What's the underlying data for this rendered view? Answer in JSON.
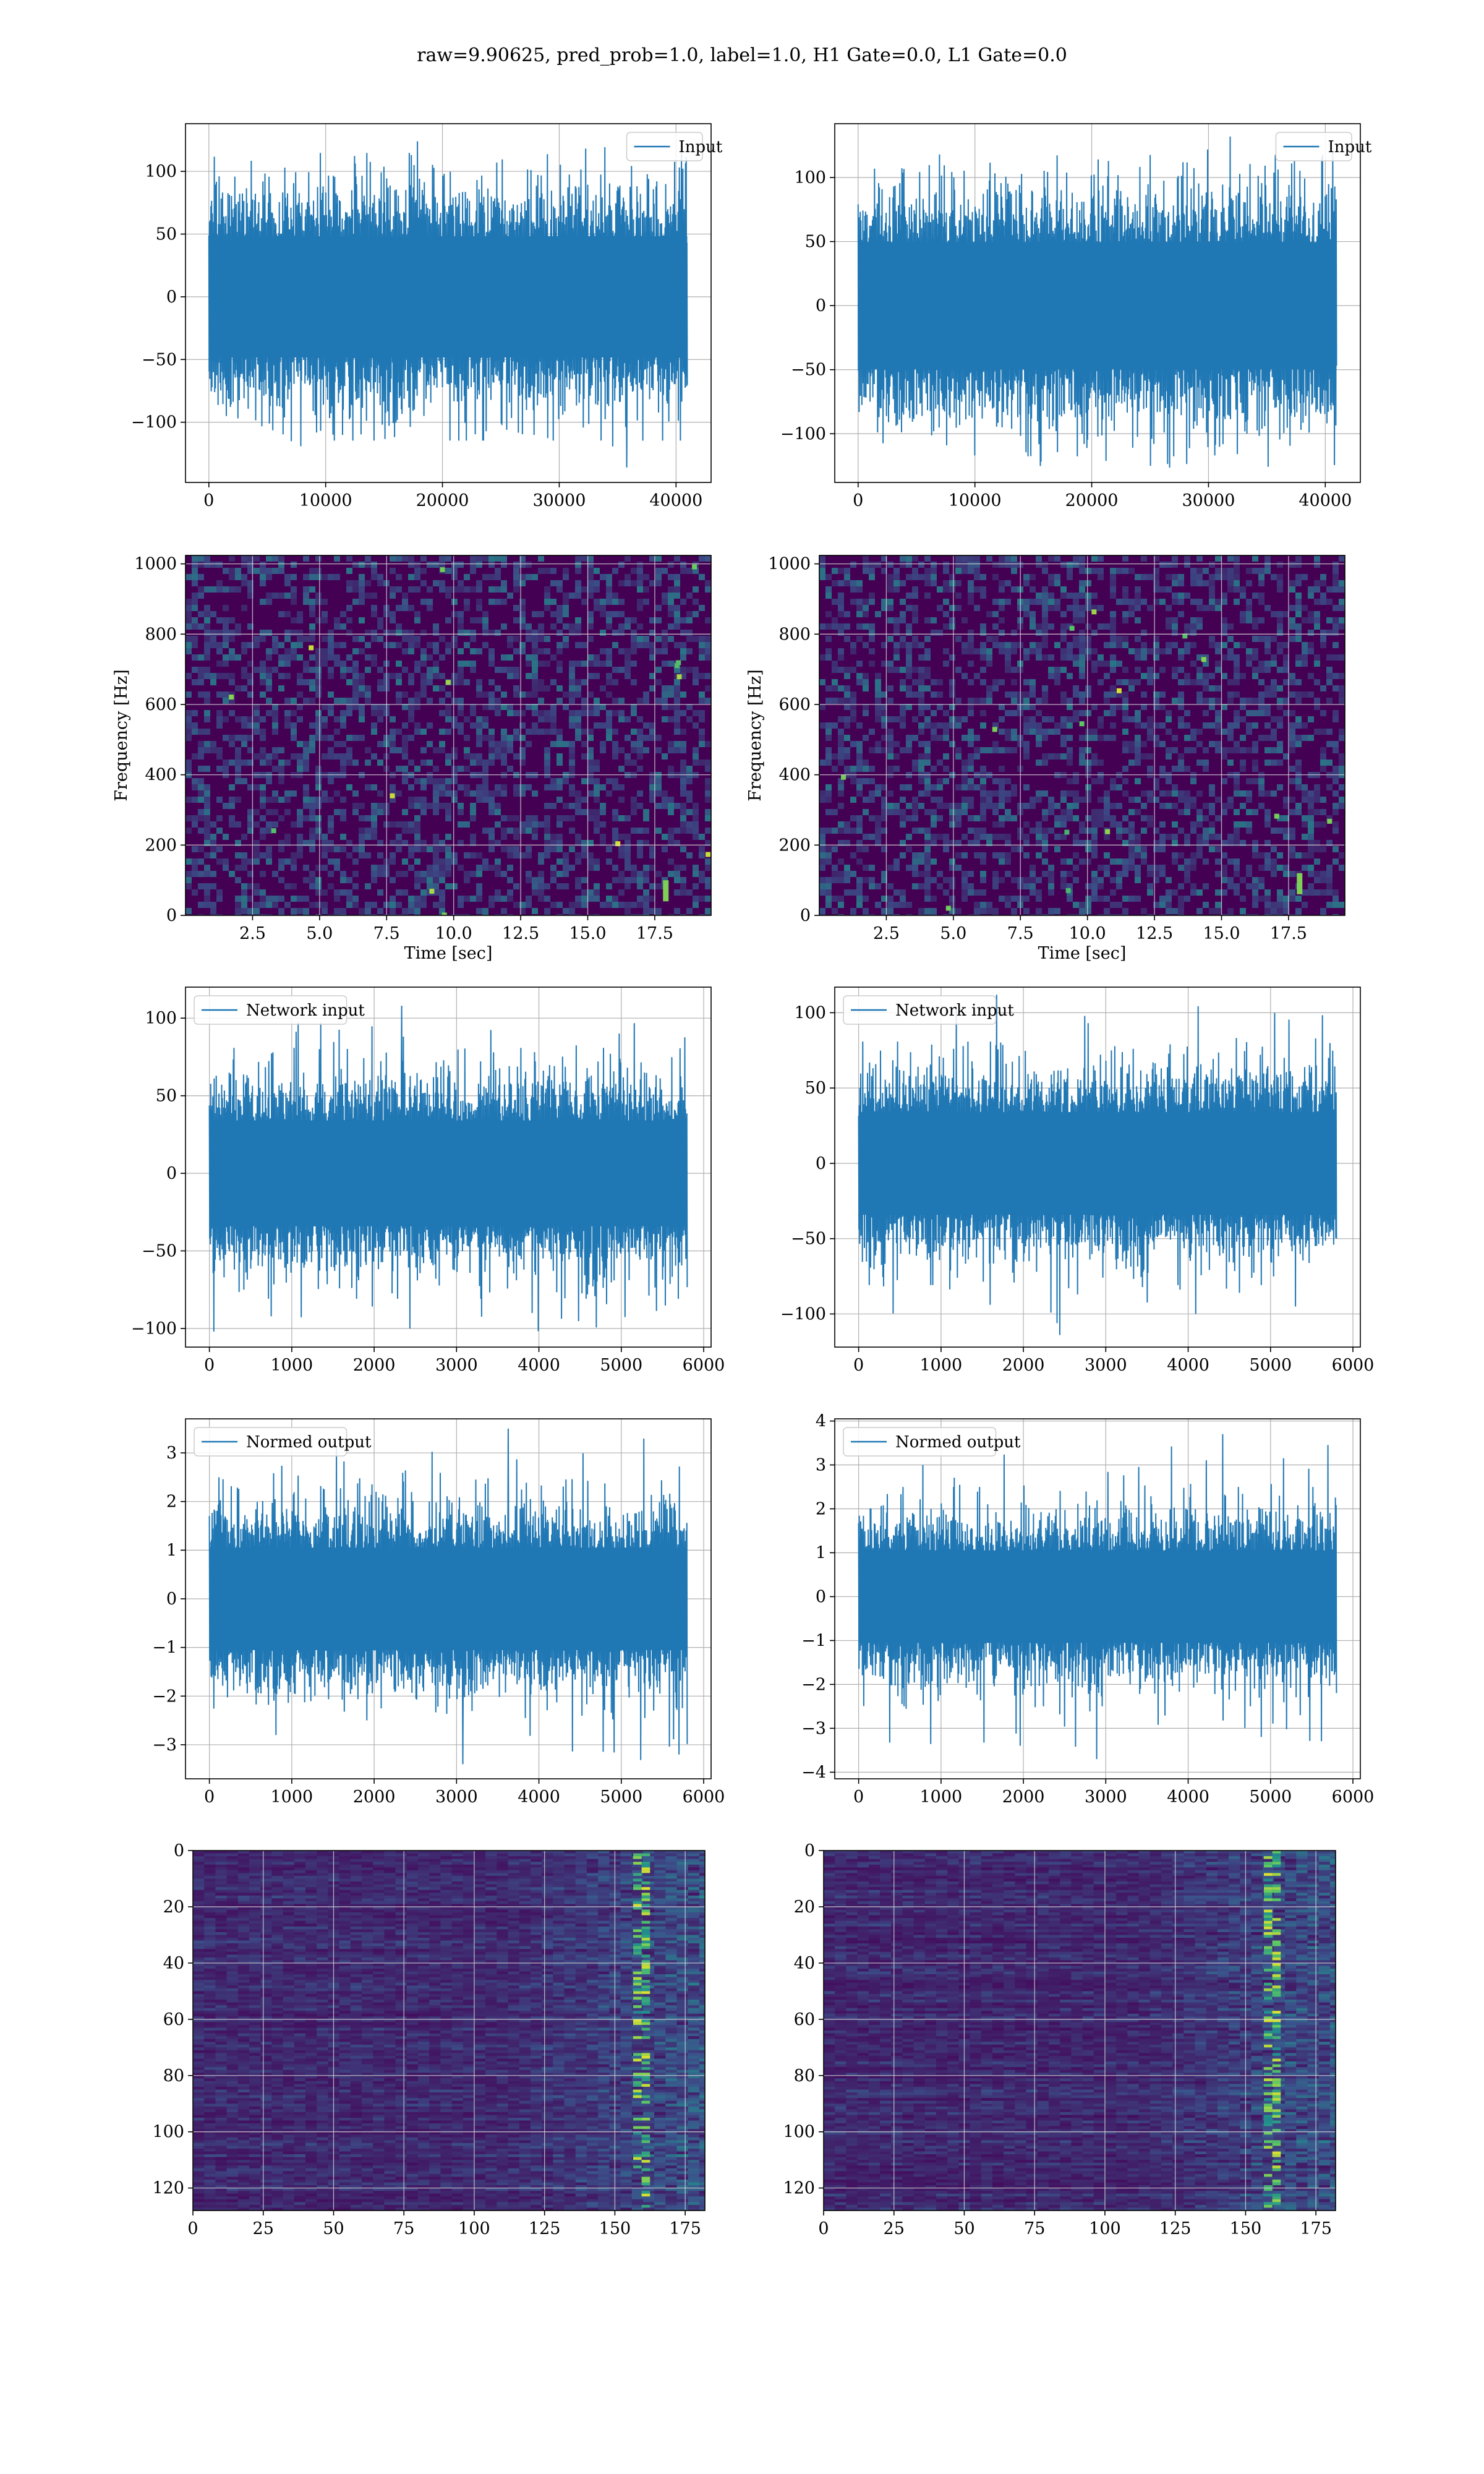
{
  "suptitle": "raw=9.90625, pred_prob=1.0, label=1.0, H1 Gate=0.0, L1 Gate=0.0",
  "colors": {
    "line": "#1f77b4",
    "viridis_low": "#440154",
    "viridis_mid": "#21918c",
    "viridis_high": "#fde725",
    "grid": "#b0b0b0"
  },
  "chart_data": [
    {
      "type": "line",
      "detector": "left",
      "legend": "Input",
      "xlim": [
        -2000,
        43000
      ],
      "ylim": [
        -148,
        138
      ],
      "xticks": [
        0,
        10000,
        20000,
        30000,
        40000
      ],
      "xtick_labels": [
        "0",
        "10000",
        "20000",
        "30000",
        "40000"
      ],
      "yticks": [
        -100,
        -50,
        0,
        50,
        100
      ],
      "ytick_labels": [
        "−100",
        "−50",
        "0",
        "50",
        "100"
      ],
      "xlabel": "",
      "ylabel": "",
      "grid": true,
      "legend_loc": "upper right",
      "series": [
        {
          "name": "Input",
          "n": 40960,
          "x": [
            0,
            40960
          ],
          "envelope": [
            -78,
            78
          ],
          "max": 124,
          "min": -136
        }
      ]
    },
    {
      "type": "line",
      "detector": "right",
      "legend": "Input",
      "xlim": [
        -2000,
        43000
      ],
      "ylim": [
        -138,
        142
      ],
      "xticks": [
        0,
        10000,
        20000,
        30000,
        40000
      ],
      "xtick_labels": [
        "0",
        "10000",
        "20000",
        "30000",
        "40000"
      ],
      "yticks": [
        -100,
        -50,
        0,
        50,
        100
      ],
      "ytick_labels": [
        "−100",
        "−50",
        "0",
        "50",
        "100"
      ],
      "xlabel": "",
      "ylabel": "",
      "grid": true,
      "legend_loc": "upper right",
      "series": [
        {
          "name": "Input",
          "n": 40960,
          "x": [
            0,
            40960
          ],
          "envelope": [
            -80,
            80
          ],
          "max": 132,
          "min": -125
        }
      ]
    },
    {
      "type": "heatmap",
      "detector": "left",
      "xlim": [
        0,
        19.6
      ],
      "ylim": [
        0,
        1024
      ],
      "xticks": [
        2.5,
        5.0,
        7.5,
        10.0,
        12.5,
        15.0,
        17.5
      ],
      "xtick_labels": [
        "2.5",
        "5.0",
        "7.5",
        "10.0",
        "12.5",
        "15.0",
        "17.5"
      ],
      "yticks": [
        0,
        200,
        400,
        600,
        800,
        1000
      ],
      "ytick_labels": [
        "0",
        "200",
        "400",
        "600",
        "800",
        "1000"
      ],
      "xlabel": "Time [sec]",
      "ylabel": "Frequency [Hz]",
      "grid": true,
      "cmap": "viridis",
      "hotspots": [
        {
          "t": 17.9,
          "f": 60
        }
      ]
    },
    {
      "type": "heatmap",
      "detector": "right",
      "xlim": [
        0,
        19.6
      ],
      "ylim": [
        0,
        1024
      ],
      "xticks": [
        2.5,
        5.0,
        7.5,
        10.0,
        12.5,
        15.0,
        17.5
      ],
      "xtick_labels": [
        "2.5",
        "5.0",
        "7.5",
        "10.0",
        "12.5",
        "15.0",
        "17.5"
      ],
      "yticks": [
        0,
        200,
        400,
        600,
        800,
        1000
      ],
      "ytick_labels": [
        "0",
        "200",
        "400",
        "600",
        "800",
        "1000"
      ],
      "xlabel": "Time [sec]",
      "ylabel": "Frequency [Hz]",
      "grid": true,
      "cmap": "viridis",
      "hotspots": [
        {
          "t": 17.9,
          "f": 80
        }
      ]
    },
    {
      "type": "line",
      "detector": "left",
      "legend": "Network input",
      "xlim": [
        -290,
        6090
      ],
      "ylim": [
        -112,
        120
      ],
      "xticks": [
        0,
        1000,
        2000,
        3000,
        4000,
        5000,
        6000
      ],
      "xtick_labels": [
        "0",
        "1000",
        "2000",
        "3000",
        "4000",
        "5000",
        "6000"
      ],
      "yticks": [
        -100,
        -50,
        0,
        50,
        100
      ],
      "ytick_labels": [
        "−100",
        "−50",
        "0",
        "50",
        "100"
      ],
      "xlabel": "",
      "ylabel": "",
      "grid": true,
      "legend_loc": "upper left",
      "series": [
        {
          "name": "Network input",
          "n": 5800,
          "x": [
            0,
            5800
          ],
          "envelope": [
            -55,
            55
          ],
          "max": 108,
          "min": -102
        }
      ]
    },
    {
      "type": "line",
      "detector": "right",
      "legend": "Network input",
      "xlim": [
        -290,
        6090
      ],
      "ylim": [
        -122,
        117
      ],
      "xticks": [
        0,
        1000,
        2000,
        3000,
        4000,
        5000,
        6000
      ],
      "xtick_labels": [
        "0",
        "1000",
        "2000",
        "3000",
        "4000",
        "5000",
        "6000"
      ],
      "yticks": [
        -100,
        -50,
        0,
        50,
        100
      ],
      "ytick_labels": [
        "−100",
        "−50",
        "0",
        "50",
        "100"
      ],
      "xlabel": "",
      "ylabel": "",
      "grid": true,
      "legend_loc": "upper left",
      "series": [
        {
          "name": "Network input",
          "n": 5800,
          "x": [
            0,
            5800
          ],
          "envelope": [
            -55,
            55
          ],
          "max": 112,
          "min": -114
        }
      ]
    },
    {
      "type": "line",
      "detector": "left",
      "legend": "Normed output",
      "xlim": [
        -290,
        6090
      ],
      "ylim": [
        -3.7,
        3.7
      ],
      "xticks": [
        0,
        1000,
        2000,
        3000,
        4000,
        5000,
        6000
      ],
      "xtick_labels": [
        "0",
        "1000",
        "2000",
        "3000",
        "4000",
        "5000",
        "6000"
      ],
      "yticks": [
        -3,
        -2,
        -1,
        0,
        1,
        2,
        3
      ],
      "ytick_labels": [
        "−3",
        "−2",
        "−1",
        "0",
        "1",
        "2",
        "3"
      ],
      "xlabel": "",
      "ylabel": "",
      "grid": true,
      "legend_loc": "upper left",
      "series": [
        {
          "name": "Normed output",
          "n": 5800,
          "x": [
            0,
            5800
          ],
          "envelope": [
            -1.7,
            1.7
          ],
          "max": 3.5,
          "min": -3.4
        }
      ]
    },
    {
      "type": "line",
      "detector": "right",
      "legend": "Normed output",
      "xlim": [
        -290,
        6090
      ],
      "ylim": [
        -4.15,
        4.05
      ],
      "xticks": [
        0,
        1000,
        2000,
        3000,
        4000,
        5000,
        6000
      ],
      "xtick_labels": [
        "0",
        "1000",
        "2000",
        "3000",
        "4000",
        "5000",
        "6000"
      ],
      "yticks": [
        -4,
        -3,
        -2,
        -1,
        0,
        1,
        2,
        3,
        4
      ],
      "ytick_labels": [
        "−4",
        "−3",
        "−2",
        "−1",
        "0",
        "1",
        "2",
        "3",
        "4"
      ],
      "xlabel": "",
      "ylabel": "",
      "grid": true,
      "legend_loc": "upper left",
      "series": [
        {
          "name": "Normed output",
          "n": 5800,
          "x": [
            0,
            5800
          ],
          "envelope": [
            -1.7,
            1.7
          ],
          "max": 3.7,
          "min": -3.7
        }
      ]
    },
    {
      "type": "heatmap",
      "detector": "left",
      "xlim": [
        0,
        182
      ],
      "ylim": [
        128,
        0
      ],
      "xticks": [
        0,
        25,
        50,
        75,
        100,
        125,
        150,
        175
      ],
      "xtick_labels": [
        "0",
        "25",
        "50",
        "75",
        "100",
        "125",
        "150",
        "175"
      ],
      "yticks": [
        0,
        20,
        40,
        60,
        80,
        100,
        120
      ],
      "ytick_labels": [
        "0",
        "20",
        "40",
        "60",
        "80",
        "100",
        "120"
      ],
      "xlabel": "",
      "ylabel": "",
      "grid": true,
      "cmap": "viridis",
      "bright_columns": [
        158,
        161
      ]
    },
    {
      "type": "heatmap",
      "detector": "right",
      "xlim": [
        0,
        182
      ],
      "ylim": [
        128,
        0
      ],
      "xticks": [
        0,
        25,
        50,
        75,
        100,
        125,
        150,
        175
      ],
      "xtick_labels": [
        "0",
        "25",
        "50",
        "75",
        "100",
        "125",
        "150",
        "175"
      ],
      "yticks": [
        0,
        20,
        40,
        60,
        80,
        100,
        120
      ],
      "ytick_labels": [
        "0",
        "20",
        "40",
        "60",
        "80",
        "100",
        "120"
      ],
      "xlabel": "",
      "ylabel": "",
      "grid": true,
      "cmap": "viridis",
      "bright_columns": [
        158,
        161
      ]
    }
  ]
}
